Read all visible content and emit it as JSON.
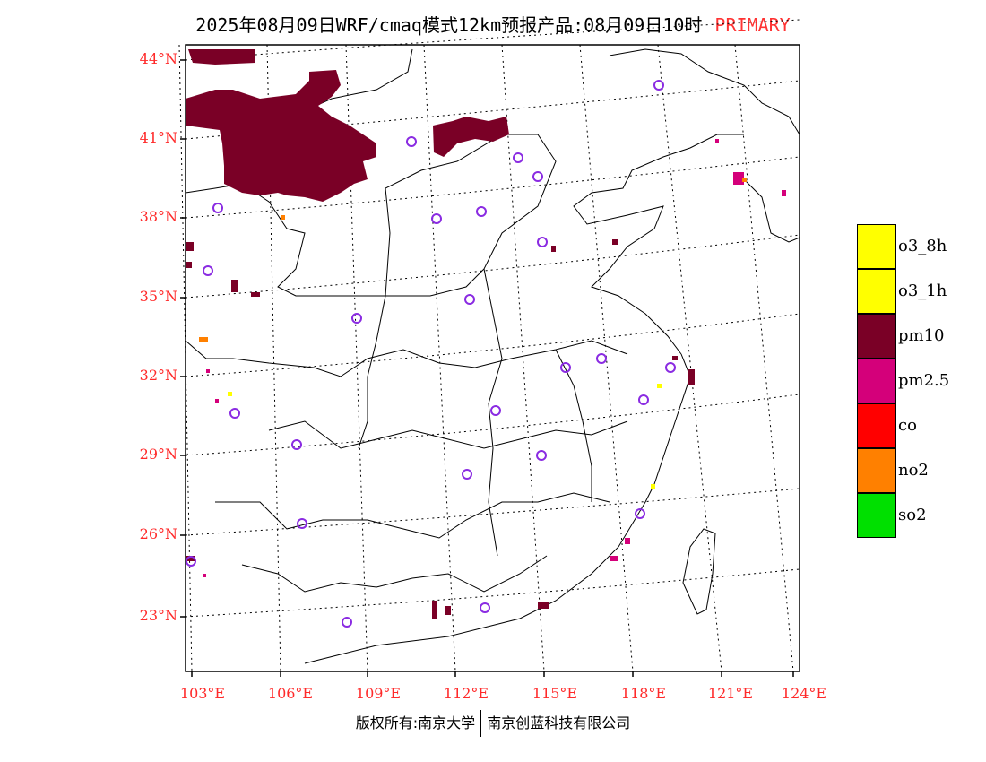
{
  "title": {
    "text": "2025年08月09日WRF/cmaq模式12km预报产品:08月09日10时",
    "tag": "PRIMARY"
  },
  "axes": {
    "lat_labels": [
      "44°N",
      "41°N",
      "38°N",
      "35°N",
      "32°N",
      "29°N",
      "26°N",
      "23°N"
    ],
    "lon_labels": [
      "103°E",
      "106°E",
      "109°E",
      "112°E",
      "115°E",
      "118°E",
      "121°E",
      "124°E"
    ],
    "label_color": "#ff2a2a"
  },
  "legend": [
    {
      "label": "o3_8h",
      "color": "#ffff00"
    },
    {
      "label": "o3_1h",
      "color": "#ffff00"
    },
    {
      "label": "pm10",
      "color": "#7a0026"
    },
    {
      "label": "pm2.5",
      "color": "#d4007a"
    },
    {
      "label": "co",
      "color": "#ff0000"
    },
    {
      "label": "no2",
      "color": "#ff8000"
    },
    {
      "label": "so2",
      "color": "#00e000"
    }
  ],
  "footer": {
    "left": "版权所有:南京大学",
    "right": "南京创蓝科技有限公司"
  },
  "colors": {
    "pm10": "#7a0026",
    "pm25": "#d4007a",
    "no2": "#ff8000",
    "o3": "#ffff00",
    "station": "#8a2be2"
  }
}
